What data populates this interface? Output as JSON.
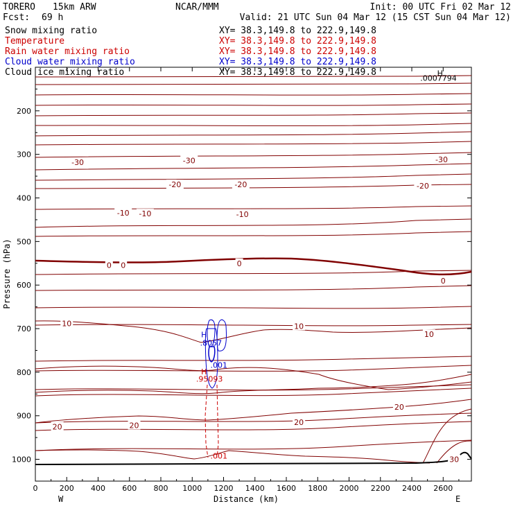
{
  "header": {
    "model": "TORERO",
    "resolution": "15km ARW",
    "center": "NCAR/MMM",
    "init": "Init: 00 UTC Fri 02 Mar 12",
    "fcst_label": "Fcst:",
    "fcst_value": "69 h",
    "valid": "Valid: 21 UTC Sun 04 Mar 12 (15 CST Sun 04 Mar 12)"
  },
  "fields": [
    {
      "name": "Snow mixing ratio",
      "xy": "XY=  38.3,149.8 to 222.9,149.8",
      "color": "#000000",
      "xy_color": "#000000"
    },
    {
      "name": "Temperature",
      "xy": "XY=  38.3,149.8 to 222.9,149.8",
      "color": "#cc0000",
      "xy_color": "#cc0000"
    },
    {
      "name": "Rain water mixing ratio",
      "xy": "XY=  38.3,149.8 to 222.9,149.8",
      "color": "#cc0000",
      "xy_color": "#cc0000"
    },
    {
      "name": "Cloud water mixing ratio",
      "xy": "XY=  38.3,149.8 to 222.9,149.8",
      "color": "#0000cc",
      "xy_color": "#0000cc"
    },
    {
      "name": "Cloud ice mixing ratio",
      "xy": "XY=  38.3,149.8 to 222.9,149.8",
      "color": "#000000",
      "xy_color": "#000000"
    }
  ],
  "chart_data": {
    "type": "cross-section contour",
    "xlabel": "Distance (km)",
    "ylabel": "Pressure (hPa)",
    "xlim": [
      0,
      2780
    ],
    "ylim": [
      1050,
      100
    ],
    "x_ticks": [
      0,
      200,
      400,
      600,
      800,
      1000,
      1200,
      1400,
      1600,
      1800,
      2000,
      2200,
      2400,
      2600
    ],
    "y_ticks": [
      200,
      300,
      400,
      500,
      600,
      700,
      800,
      900,
      1000
    ],
    "left_end": "W",
    "right_end": "E",
    "temperature_labels": [
      {
        "x": 270,
        "p": 318,
        "text": "-30"
      },
      {
        "x": 980,
        "p": 314,
        "text": "-30"
      },
      {
        "x": 2590,
        "p": 312,
        "text": "-30"
      },
      {
        "x": 890,
        "p": 369,
        "text": "-20"
      },
      {
        "x": 1310,
        "p": 369,
        "text": "-20"
      },
      {
        "x": 2470,
        "p": 372,
        "text": "-20"
      },
      {
        "x": 560,
        "p": 434,
        "text": "-10"
      },
      {
        "x": 700,
        "p": 436,
        "text": "-10"
      },
      {
        "x": 1320,
        "p": 437,
        "text": "-10"
      },
      {
        "x": 470,
        "p": 554,
        "text": "0"
      },
      {
        "x": 560,
        "p": 554,
        "text": "0"
      },
      {
        "x": 1300,
        "p": 550,
        "text": "0"
      },
      {
        "x": 2600,
        "p": 590,
        "text": "0"
      },
      {
        "x": 200,
        "p": 688,
        "text": "10"
      },
      {
        "x": 1680,
        "p": 694,
        "text": "10"
      },
      {
        "x": 2510,
        "p": 713,
        "text": "10"
      },
      {
        "x": 140,
        "p": 925,
        "text": "20"
      },
      {
        "x": 630,
        "p": 922,
        "text": "20"
      },
      {
        "x": 1680,
        "p": 915,
        "text": "20"
      },
      {
        "x": 2320,
        "p": 880,
        "text": "20"
      },
      {
        "x": 2670,
        "p": 1000,
        "text": "30"
      }
    ],
    "contour_paths": [
      {
        "p_start": 140,
        "p_end": 138,
        "color": "#800000"
      },
      {
        "p_start": 155,
        "p_end": 154,
        "color": "#800000"
      },
      {
        "p_start": 170,
        "p_end": 168,
        "color": "#800000"
      },
      {
        "p_start": 185,
        "p_end": 182,
        "color": "#800000"
      },
      {
        "p_start": 215,
        "p_end": 212,
        "color": "#800000"
      },
      {
        "p_start": 232,
        "p_end": 226,
        "color": "#800000"
      },
      {
        "p_start": 250,
        "p_end": 243,
        "color": "#800000"
      },
      {
        "p_start": 270,
        "p_end": 265,
        "color": "#800000"
      },
      {
        "p_start": 290,
        "p_end": 285,
        "color": "#800000"
      }
    ],
    "markers": [
      {
        "x": 2580,
        "p": 120,
        "text": "H",
        "color": "#000000"
      },
      {
        "x": 2570,
        "p": 131,
        "text": ".0007794",
        "color": "#000000"
      },
      {
        "x": 1075,
        "p": 720,
        "text": "H",
        "color": "#0000cc"
      },
      {
        "x": 1120,
        "p": 739,
        "text": ".8057",
        "color": "#0000cc"
      },
      {
        "x": 1170,
        "p": 790,
        "text": ".001",
        "color": "#0000cc"
      },
      {
        "x": 1075,
        "p": 805,
        "text": "H",
        "color": "#cc0000"
      },
      {
        "x": 1110,
        "p": 822,
        "text": ".95093",
        "color": "#cc0000"
      },
      {
        "x": 1170,
        "p": 998,
        "text": ".001",
        "color": "#cc0000"
      }
    ]
  }
}
